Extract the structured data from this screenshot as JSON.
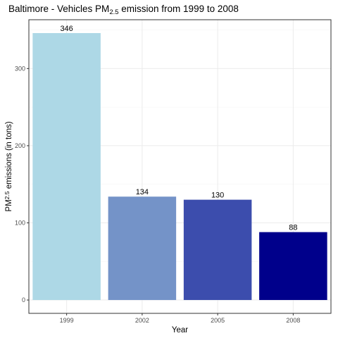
{
  "chart_data": {
    "type": "bar",
    "title": {
      "prefix": "Baltimore - Vehicles  PM",
      "subscript": "2.5",
      "suffix": "  emission from 1999 to 2008"
    },
    "xlabel": "Year",
    "ylabel": {
      "prefix": "PM",
      "subscript": "2.5",
      "suffix": " emissions (in tons)"
    },
    "categories": [
      "1999",
      "2002",
      "2005",
      "2008"
    ],
    "values": [
      346,
      134,
      130,
      88
    ],
    "data_labels": [
      "346",
      "134",
      "130",
      "88"
    ],
    "bar_colors": [
      "#add8e6",
      "#7493c8",
      "#3c4dad",
      "#00008b"
    ],
    "ylim": [
      -17.3,
      363.3
    ],
    "yticks": [
      0,
      100,
      200,
      300
    ],
    "ytick_labels": [
      "0",
      "100",
      "200",
      "300"
    ],
    "grid": true,
    "legend": "none",
    "colors": {
      "grid_major": "#ebebeb",
      "grid_minor": "#f5f5f5",
      "border": "#333333",
      "tick_text": "#4d4d4d"
    }
  }
}
